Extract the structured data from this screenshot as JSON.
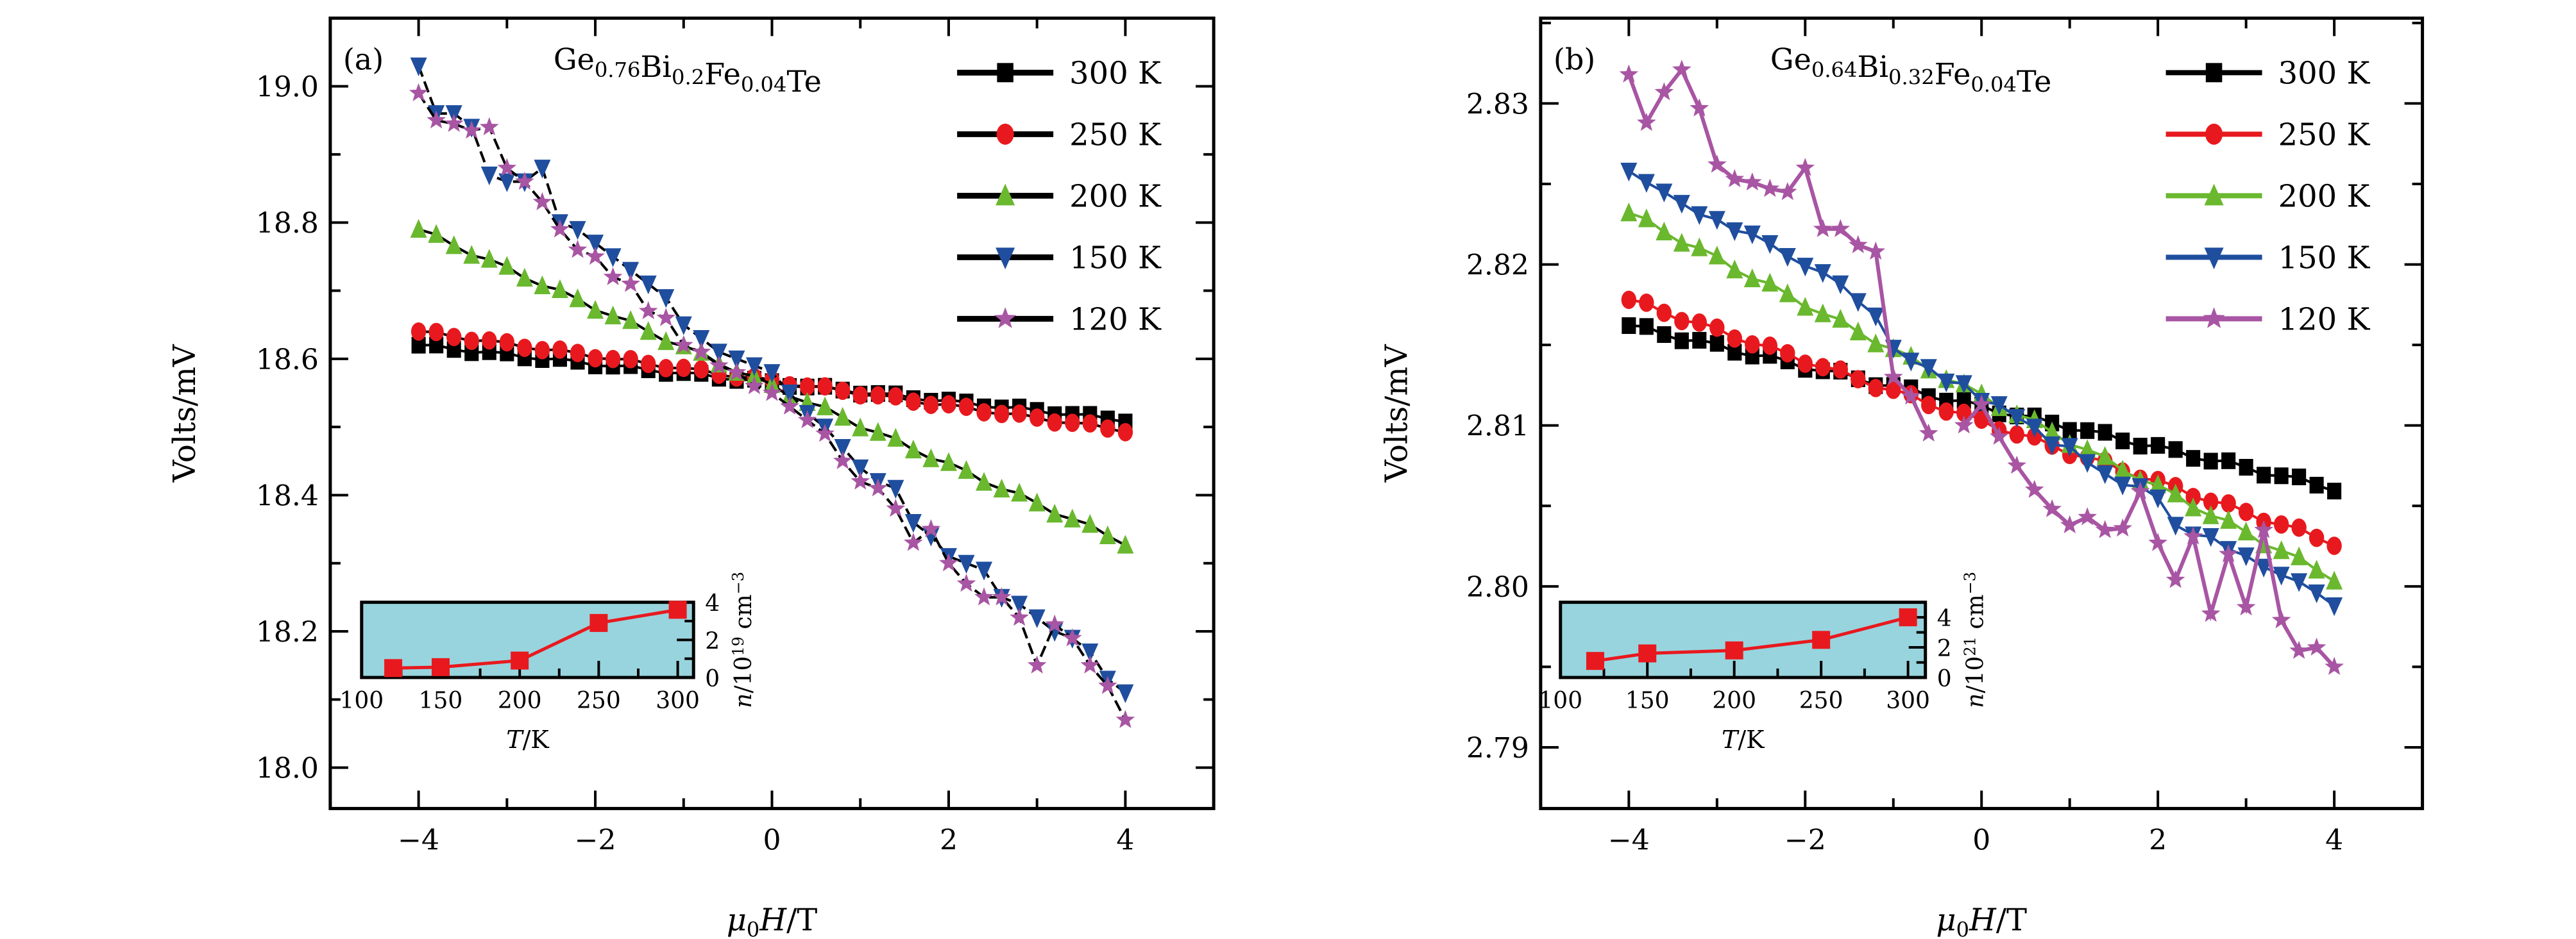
{
  "chart_data": [
    {
      "type": "line",
      "panel_label": "(a)",
      "title": "Ge0.76Bi0.2Fe0.04Te",
      "title_parts": [
        [
          "Ge",
          ""
        ],
        [
          "0.76",
          "sub"
        ],
        [
          "Bi",
          ""
        ],
        [
          "0.2",
          "sub"
        ],
        [
          "Fe",
          ""
        ],
        [
          "0.04",
          "sub"
        ],
        [
          "Te",
          ""
        ]
      ],
      "xlabel": "μ0H/T",
      "ylabel": "Volts/mV",
      "xlim": [
        -5,
        5
      ],
      "ylim": [
        17.94,
        19.1
      ],
      "xticks": [
        -4,
        -2,
        0,
        2,
        4
      ],
      "xtick_labels": [
        "−4",
        "−2",
        "0",
        "2",
        "4"
      ],
      "yticks": [
        18.0,
        18.2,
        18.4,
        18.6,
        18.8,
        19.0
      ],
      "ytick_labels": [
        "18.0",
        "18.2",
        "18.4",
        "18.6",
        "18.8",
        "19.0"
      ],
      "legend_position": "top-right",
      "series": [
        {
          "name": "300 K",
          "marker": "square",
          "color": "#000000",
          "line_color": "#000000",
          "x_range": [
            -4,
            4
          ],
          "start": 18.62,
          "end": 18.51,
          "noise": 0.003
        },
        {
          "name": "250 K",
          "marker": "circle",
          "color": "#e8191e",
          "line_color": "#000000",
          "x_range": [
            -4,
            4
          ],
          "start": 18.64,
          "end": 18.495,
          "noise": 0.003
        },
        {
          "name": "200 K",
          "marker": "triangle-up",
          "color": "#6ab82e",
          "line_color": "#000000",
          "x_range": [
            -4,
            4
          ],
          "start": 18.79,
          "end": 18.33,
          "noise": 0.004
        },
        {
          "name": "150 K",
          "marker": "triangle-down",
          "color": "#1f4e9e",
          "line_color": "#000000",
          "x": [
            -4.0,
            -3.8,
            -3.6,
            -3.4,
            -3.2,
            -3.0,
            -2.8,
            -2.6,
            -2.4,
            -2.2,
            -2.0,
            -1.8,
            -1.6,
            -1.4,
            -1.2,
            -1.0,
            -0.8,
            -0.6,
            -0.4,
            -0.2,
            0.0,
            0.2,
            0.4,
            0.6,
            0.8,
            1.0,
            1.2,
            1.4,
            1.6,
            1.8,
            2.0,
            2.2,
            2.4,
            2.6,
            2.8,
            3.0,
            3.2,
            3.4,
            3.6,
            3.8,
            4.0
          ],
          "y": [
            19.03,
            18.96,
            18.96,
            18.94,
            18.87,
            18.86,
            18.86,
            18.88,
            18.8,
            18.79,
            18.77,
            18.75,
            18.73,
            18.71,
            18.69,
            18.65,
            18.63,
            18.61,
            18.6,
            18.59,
            18.58,
            18.55,
            18.52,
            18.5,
            18.47,
            18.44,
            18.42,
            18.41,
            18.36,
            18.34,
            18.31,
            18.3,
            18.29,
            18.25,
            18.24,
            18.22,
            18.2,
            18.19,
            18.17,
            18.13,
            18.11
          ]
        },
        {
          "name": "120 K",
          "marker": "star",
          "color": "#a855a3",
          "line_color": "#000000",
          "x": [
            -4.0,
            -3.8,
            -3.6,
            -3.4,
            -3.2,
            -3.0,
            -2.8,
            -2.6,
            -2.4,
            -2.2,
            -2.0,
            -1.8,
            -1.6,
            -1.4,
            -1.2,
            -1.0,
            -0.8,
            -0.6,
            -0.4,
            -0.2,
            0.0,
            0.2,
            0.4,
            0.6,
            0.8,
            1.0,
            1.2,
            1.4,
            1.6,
            1.8,
            2.0,
            2.2,
            2.4,
            2.6,
            2.8,
            3.0,
            3.2,
            3.4,
            3.6,
            3.8,
            4.0
          ],
          "y": [
            18.99,
            18.95,
            18.945,
            18.935,
            18.94,
            18.88,
            18.86,
            18.83,
            18.79,
            18.76,
            18.75,
            18.72,
            18.71,
            18.67,
            18.66,
            18.62,
            18.61,
            18.59,
            18.58,
            18.56,
            18.55,
            18.53,
            18.51,
            18.49,
            18.45,
            18.42,
            18.41,
            18.38,
            18.33,
            18.35,
            18.3,
            18.27,
            18.25,
            18.25,
            18.22,
            18.15,
            18.21,
            18.19,
            18.15,
            18.12,
            18.07
          ]
        }
      ],
      "inset": {
        "type": "line",
        "xlabel": "T/K",
        "ylabel": "n/10^19 cm^−3",
        "ylabel_exp": "19",
        "xlim": [
          100,
          310
        ],
        "ylim": [
          0,
          4
        ],
        "xticks": [
          100,
          150,
          200,
          250,
          300
        ],
        "yticks": [
          0,
          2,
          4
        ],
        "x": [
          120,
          150,
          200,
          250,
          300
        ],
        "y": [
          0.5,
          0.55,
          0.9,
          2.9,
          3.6
        ],
        "color": "#e8191e",
        "background": "#98d4de"
      }
    },
    {
      "type": "line",
      "panel_label": "(b)",
      "title": "Ge0.64Bi0.32Fe0.04Te",
      "title_parts": [
        [
          "Ge",
          ""
        ],
        [
          "0.64",
          "sub"
        ],
        [
          "Bi",
          ""
        ],
        [
          "0.32",
          "sub"
        ],
        [
          "Fe",
          ""
        ],
        [
          "0.04",
          "sub"
        ],
        [
          "Te",
          ""
        ]
      ],
      "xlabel": "μ0H/T",
      "ylabel": "Volts/mV",
      "xlim": [
        -5,
        5
      ],
      "ylim": [
        2.7862,
        2.8353
      ],
      "xticks": [
        -4,
        -2,
        0,
        2,
        4
      ],
      "xtick_labels": [
        "−4",
        "−2",
        "0",
        "2",
        "4"
      ],
      "yticks": [
        2.79,
        2.8,
        2.81,
        2.82,
        2.83
      ],
      "ytick_labels": [
        "2.79",
        "2.80",
        "2.81",
        "2.82",
        "2.83"
      ],
      "legend_position": "top-right",
      "series": [
        {
          "name": "300 K",
          "marker": "square",
          "color": "#000000",
          "line_color": "#000000",
          "x_range": [
            -4,
            4
          ],
          "start": 2.8162,
          "end": 2.8061,
          "noise": 0.0002
        },
        {
          "name": "250 K",
          "marker": "circle",
          "color": "#e8191e",
          "line_color": "#e8191e",
          "x_range": [
            -4,
            4
          ],
          "start": 2.8178,
          "end": 2.8027,
          "noise": 0.0002
        },
        {
          "name": "200 K",
          "marker": "triangle-up",
          "color": "#6ab82e",
          "line_color": "#6ab82e",
          "x_range": [
            -4,
            4
          ],
          "start": 2.8232,
          "end": 2.8005,
          "noise": 0.0002
        },
        {
          "name": "150 K",
          "marker": "triangle-down",
          "color": "#1f4e9e",
          "line_color": "#1f4e9e",
          "x": [
            -4.0,
            -3.8,
            -3.6,
            -3.4,
            -3.2,
            -3.0,
            -2.8,
            -2.6,
            -2.4,
            -2.2,
            -2.0,
            -1.8,
            -1.6,
            -1.4,
            -1.2,
            -1.0,
            -0.8,
            -0.6,
            -0.4,
            -0.2,
            0.0,
            0.2,
            0.4,
            0.6,
            0.8,
            1.0,
            1.2,
            1.4,
            1.6,
            1.8,
            2.0,
            2.2,
            2.4,
            2.6,
            2.8,
            3.0,
            3.2,
            3.4,
            3.6,
            3.8,
            4.0
          ],
          "y": [
            2.8258,
            2.8251,
            2.8245,
            2.8238,
            2.8231,
            2.8228,
            2.8221,
            2.8219,
            2.8213,
            2.8205,
            2.8199,
            2.8195,
            2.8188,
            2.8177,
            2.8168,
            2.8148,
            2.814,
            2.8136,
            2.8127,
            2.8126,
            2.8115,
            2.8113,
            2.8105,
            2.8099,
            2.8088,
            2.8087,
            2.8077,
            2.807,
            2.8063,
            2.8062,
            2.8055,
            2.8038,
            2.8032,
            2.8031,
            2.8023,
            2.8019,
            2.8012,
            2.8007,
            2.8003,
            2.7996,
            2.7988
          ]
        },
        {
          "name": "120 K",
          "marker": "star",
          "color": "#a855a3",
          "line_color": "#a855a3",
          "x": [
            -4.0,
            -3.8,
            -3.6,
            -3.4,
            -3.2,
            -3.0,
            -2.8,
            -2.6,
            -2.4,
            -2.2,
            -2.0,
            -1.8,
            -1.6,
            -1.4,
            -1.2,
            -1.0,
            -0.8,
            -0.6,
            -0.4,
            -0.2,
            0.0,
            0.2,
            0.4,
            0.6,
            0.8,
            1.0,
            1.2,
            1.4,
            1.6,
            1.8,
            2.0,
            2.2,
            2.4,
            2.6,
            2.8,
            3.0,
            3.2,
            3.4,
            3.6,
            3.8,
            4.0
          ],
          "y": [
            2.8318,
            2.8288,
            2.8307,
            2.8321,
            2.8297,
            2.8262,
            2.8253,
            2.8251,
            2.8247,
            2.8245,
            2.826,
            2.8222,
            2.8222,
            2.8212,
            2.8208,
            2.813,
            2.8118,
            2.8095,
            null,
            2.81,
            2.8113,
            2.8093,
            2.8075,
            2.806,
            2.8048,
            2.8038,
            2.8043,
            2.8035,
            2.8036,
            2.8059,
            2.8027,
            2.8004,
            2.8031,
            2.7983,
            2.802,
            2.7987,
            2.8035,
            2.7979,
            2.796,
            2.7962,
            2.795
          ]
        }
      ],
      "inset": {
        "type": "line",
        "xlabel": "T/K",
        "ylabel": "n/10^21 cm^−3",
        "ylabel_exp": "21",
        "xlim": [
          100,
          310
        ],
        "ylim": [
          0,
          5
        ],
        "xticks": [
          100,
          150,
          200,
          250,
          300
        ],
        "yticks": [
          0,
          2,
          4
        ],
        "x": [
          120,
          150,
          200,
          250,
          300
        ],
        "y": [
          1.1,
          1.6,
          1.8,
          2.5,
          4.0
        ],
        "color": "#e8191e",
        "background": "#98d4de"
      }
    }
  ]
}
